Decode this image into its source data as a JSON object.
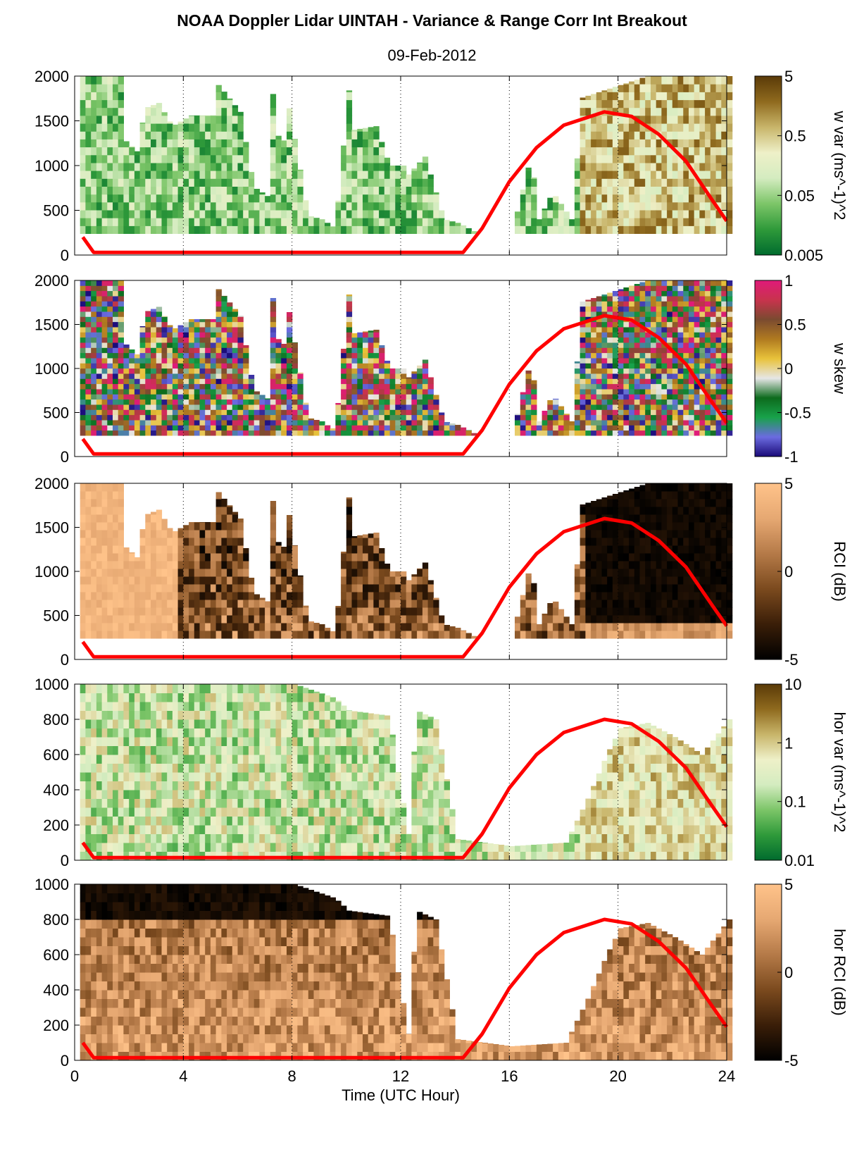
{
  "title": "NOAA Doppler Lidar UINTAH - Variance & Range Corr Int Breakout",
  "subtitle": "09-Feb-2012",
  "colors": {
    "curve": "#ff0000",
    "green_brown": [
      "#006b2e",
      "#2f9a3a",
      "#7cc568",
      "#d4ecc0",
      "#eef0c8",
      "#c8b56a",
      "#8f6a1e",
      "#5a3a08"
    ],
    "skew": [
      "#1a0a78",
      "#6b6be0",
      "#18a24a",
      "#0d6b1d",
      "#e6e6e6",
      "#e8c23a",
      "#b07a20",
      "#7a4a30",
      "#c8334d",
      "#e01a7a"
    ],
    "rci": [
      "#000000",
      "#3a1e08",
      "#7b4a1e",
      "#b57a48",
      "#e6a872",
      "#ffc38a"
    ]
  },
  "chart_data": [
    {
      "type": "heatmap",
      "xlabel": "Time (UTC Hour)",
      "xticks": [
        0,
        4,
        8,
        12,
        16,
        20,
        24
      ],
      "xlim": [
        0,
        24
      ],
      "ylim": [
        0,
        2000
      ],
      "yticks": [
        0,
        500,
        1000,
        1500,
        2000
      ],
      "colorbar_label": "w var (ms^-1)^2",
      "colorbar_ticks": [
        "5",
        "0.5",
        "0.05",
        "0.005"
      ],
      "colormap": "green_brown",
      "curve": [
        [
          0.3,
          200
        ],
        [
          0.7,
          30
        ],
        [
          14.3,
          30
        ],
        [
          15,
          300
        ],
        [
          16,
          820
        ],
        [
          17,
          1200
        ],
        [
          18,
          1450
        ],
        [
          19.5,
          1600
        ],
        [
          20.5,
          1550
        ],
        [
          21.5,
          1350
        ],
        [
          22.5,
          1050
        ],
        [
          23.5,
          600
        ],
        [
          24,
          380
        ]
      ]
    },
    {
      "type": "heatmap",
      "xlabel": "Time (UTC Hour)",
      "xticks": [
        0,
        4,
        8,
        12,
        16,
        20,
        24
      ],
      "xlim": [
        0,
        24
      ],
      "ylim": [
        0,
        2000
      ],
      "yticks": [
        0,
        500,
        1000,
        1500,
        2000
      ],
      "colorbar_label": "w skew",
      "colorbar_ticks": [
        "1",
        "0.5",
        "0",
        "-0.5",
        "-1"
      ],
      "colormap": "skew",
      "curve": [
        [
          0.3,
          200
        ],
        [
          0.7,
          30
        ],
        [
          14.3,
          30
        ],
        [
          15,
          300
        ],
        [
          16,
          820
        ],
        [
          17,
          1200
        ],
        [
          18,
          1450
        ],
        [
          19.5,
          1600
        ],
        [
          20.5,
          1550
        ],
        [
          21.5,
          1350
        ],
        [
          22.5,
          1050
        ],
        [
          23.5,
          600
        ],
        [
          24,
          380
        ]
      ]
    },
    {
      "type": "heatmap",
      "xlabel": "Time (UTC Hour)",
      "xticks": [
        0,
        4,
        8,
        12,
        16,
        20,
        24
      ],
      "xlim": [
        0,
        24
      ],
      "ylim": [
        0,
        2000
      ],
      "yticks": [
        0,
        500,
        1000,
        1500,
        2000
      ],
      "colorbar_label": "RCI (dB)",
      "colorbar_ticks": [
        "5",
        "0",
        "-5"
      ],
      "colormap": "rci",
      "curve": [
        [
          0.3,
          200
        ],
        [
          0.7,
          30
        ],
        [
          14.3,
          30
        ],
        [
          15,
          300
        ],
        [
          16,
          820
        ],
        [
          17,
          1200
        ],
        [
          18,
          1450
        ],
        [
          19.5,
          1600
        ],
        [
          20.5,
          1550
        ],
        [
          21.5,
          1350
        ],
        [
          22.5,
          1050
        ],
        [
          23.5,
          600
        ],
        [
          24,
          380
        ]
      ]
    },
    {
      "type": "heatmap",
      "xlabel": "Time (UTC Hour)",
      "xticks": [
        0,
        4,
        8,
        12,
        16,
        20,
        24
      ],
      "xlim": [
        0,
        24
      ],
      "ylim": [
        0,
        1000
      ],
      "yticks": [
        0,
        200,
        400,
        600,
        800,
        1000
      ],
      "colorbar_label": "hor var (ms^-1)^2",
      "colorbar_ticks": [
        "10",
        "1",
        "0.1",
        "0.01"
      ],
      "colormap": "green_brown",
      "curve": [
        [
          0.3,
          100
        ],
        [
          0.7,
          15
        ],
        [
          14.3,
          15
        ],
        [
          15,
          150
        ],
        [
          16,
          410
        ],
        [
          17,
          600
        ],
        [
          18,
          725
        ],
        [
          19.5,
          800
        ],
        [
          20.5,
          775
        ],
        [
          21.5,
          675
        ],
        [
          22.5,
          525
        ],
        [
          23.5,
          300
        ],
        [
          24,
          190
        ]
      ]
    },
    {
      "type": "heatmap",
      "xlabel": "Time (UTC Hour)",
      "xticks": [
        0,
        4,
        8,
        12,
        16,
        20,
        24
      ],
      "xlim": [
        0,
        24
      ],
      "ylim": [
        0,
        1000
      ],
      "yticks": [
        0,
        200,
        400,
        600,
        800,
        1000
      ],
      "colorbar_label": "hor RCI (dB)",
      "colorbar_ticks": [
        "5",
        "0",
        "-5"
      ],
      "colormap": "rci",
      "curve": [
        [
          0.3,
          100
        ],
        [
          0.7,
          15
        ],
        [
          14.3,
          15
        ],
        [
          15,
          150
        ],
        [
          16,
          410
        ],
        [
          17,
          600
        ],
        [
          18,
          725
        ],
        [
          19.5,
          800
        ],
        [
          20.5,
          775
        ],
        [
          21.5,
          675
        ],
        [
          22.5,
          525
        ],
        [
          23.5,
          300
        ],
        [
          24,
          190
        ]
      ]
    }
  ]
}
